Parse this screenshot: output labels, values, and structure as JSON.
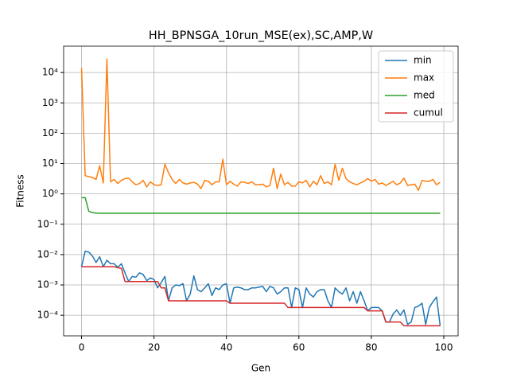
{
  "chart_data": {
    "type": "line",
    "title": "HH_BPNSGA_10run_MSE(ex),SC,AMP,W",
    "x_label": "Gen",
    "y_label": "Fitness",
    "y_scale": "log",
    "grid": true,
    "legend": "upper right",
    "x": [
      0,
      1,
      2,
      3,
      4,
      5,
      6,
      7,
      8,
      9,
      10,
      11,
      12,
      13,
      14,
      15,
      16,
      17,
      18,
      19,
      20,
      21,
      22,
      23,
      24,
      25,
      26,
      27,
      28,
      29,
      30,
      31,
      32,
      33,
      34,
      35,
      36,
      37,
      38,
      39,
      40,
      41,
      42,
      43,
      44,
      45,
      46,
      47,
      48,
      49,
      50,
      51,
      52,
      53,
      54,
      55,
      56,
      57,
      58,
      59,
      60,
      61,
      62,
      63,
      64,
      65,
      66,
      67,
      68,
      69,
      70,
      71,
      72,
      73,
      74,
      75,
      76,
      77,
      78,
      79,
      80,
      81,
      82,
      83,
      84,
      85,
      86,
      87,
      88,
      89,
      90,
      91,
      92,
      93,
      94,
      95,
      96,
      97,
      98,
      99
    ],
    "xlim": [
      -4.95,
      103.95
    ],
    "xticks": [
      0,
      20,
      40,
      60,
      80,
      100
    ],
    "ylim": [
      2.1e-05,
      74000
    ],
    "yticks": [
      {
        "value": 0.0001,
        "label": "10⁻⁴"
      },
      {
        "value": 0.001,
        "label": "10⁻³"
      },
      {
        "value": 0.01,
        "label": "10⁻²"
      },
      {
        "value": 0.1,
        "label": "10⁻¹"
      },
      {
        "value": 1,
        "label": "10⁰"
      },
      {
        "value": 10,
        "label": "10¹"
      },
      {
        "value": 100,
        "label": "10²"
      },
      {
        "value": 1000,
        "label": "10³"
      },
      {
        "value": 10000,
        "label": "10⁴"
      }
    ],
    "series": [
      {
        "name": "min",
        "color": "#1f77b4",
        "values": [
          0.004,
          0.013,
          0.012,
          0.009,
          0.0055,
          0.0085,
          0.004,
          0.0065,
          0.005,
          0.005,
          0.0038,
          0.005,
          0.0025,
          0.0013,
          0.0019,
          0.0018,
          0.0025,
          0.0022,
          0.0014,
          0.0017,
          0.0015,
          0.0008,
          0.0012,
          0.0019,
          0.0003,
          0.0008,
          0.001,
          0.00095,
          0.0011,
          0.0003,
          0.0005,
          0.002,
          0.0007,
          0.0006,
          0.0008,
          0.0011,
          0.00045,
          0.0008,
          0.0007,
          0.001,
          0.0011,
          0.00025,
          0.0008,
          0.00085,
          0.0008,
          0.0007,
          0.0007,
          0.0008,
          0.0008,
          0.00085,
          0.0009,
          0.0006,
          0.0009,
          0.0008,
          0.0005,
          0.0006,
          0.0008,
          0.0008,
          0.00018,
          0.0008,
          0.0007,
          0.00018,
          0.0008,
          0.0005,
          0.0004,
          0.0006,
          0.0007,
          0.0007,
          0.0003,
          0.00018,
          0.0008,
          0.0006,
          0.0005,
          0.0008,
          0.0003,
          0.0006,
          0.00025,
          0.0006,
          0.0003,
          0.00014,
          0.00018,
          0.00018,
          0.00018,
          0.00014,
          6e-05,
          6e-05,
          0.00011,
          0.00015,
          0.0001,
          0.00015,
          5e-05,
          6e-05,
          0.00018,
          0.0002,
          0.00025,
          5e-05,
          0.00018,
          0.00028,
          0.0004,
          4.5e-05
        ]
      },
      {
        "name": "max",
        "color": "#ff7f0e",
        "values": [
          14000,
          4,
          3.7,
          3.5,
          3,
          8.5,
          2.3,
          28000,
          2.5,
          3,
          2.2,
          2.8,
          3.2,
          3.3,
          2.5,
          2,
          2.2,
          2.8,
          1.7,
          2.5,
          2,
          1.9,
          2,
          9.5,
          5,
          3,
          2.2,
          3,
          2.3,
          2.1,
          2.3,
          2.4,
          2.1,
          1.5,
          2.8,
          2.6,
          2,
          2.5,
          2.5,
          14,
          2,
          2.6,
          2.1,
          1.8,
          2.5,
          2.4,
          2.2,
          2.5,
          2,
          2,
          2.1,
          1.7,
          1.9,
          7,
          1.5,
          4.5,
          2,
          2.4,
          1.8,
          1.8,
          2.5,
          2.3,
          2.8,
          1.7,
          2.6,
          2,
          4,
          2.2,
          2.5,
          2,
          9.5,
          2.8,
          7,
          3.2,
          2.5,
          2.2,
          2,
          2.3,
          2.6,
          3.2,
          2.6,
          3,
          2.1,
          2.3,
          1.9,
          2.2,
          2.6,
          2,
          2.3,
          3.3,
          1.9,
          2,
          2.1,
          1.3,
          2.8,
          2.6,
          2.6,
          3,
          2,
          2.4
        ]
      },
      {
        "name": "med",
        "color": "#2ca02c",
        "values": [
          0.75,
          0.75,
          0.27,
          0.24,
          0.235,
          0.23,
          0.23,
          0.23,
          0.23,
          0.23,
          0.23,
          0.23,
          0.23,
          0.23,
          0.23,
          0.23,
          0.23,
          0.23,
          0.23,
          0.23,
          0.23,
          0.23,
          0.23,
          0.23,
          0.23,
          0.23,
          0.23,
          0.23,
          0.23,
          0.23,
          0.23,
          0.23,
          0.23,
          0.23,
          0.23,
          0.23,
          0.23,
          0.23,
          0.23,
          0.23,
          0.23,
          0.23,
          0.23,
          0.23,
          0.23,
          0.23,
          0.23,
          0.23,
          0.23,
          0.23,
          0.23,
          0.23,
          0.23,
          0.23,
          0.23,
          0.23,
          0.23,
          0.23,
          0.23,
          0.23,
          0.23,
          0.23,
          0.23,
          0.23,
          0.23,
          0.23,
          0.23,
          0.23,
          0.23,
          0.23,
          0.23,
          0.23,
          0.23,
          0.23,
          0.23,
          0.23,
          0.23,
          0.23,
          0.23,
          0.23,
          0.23,
          0.23,
          0.23,
          0.23,
          0.23,
          0.23,
          0.23,
          0.23,
          0.23,
          0.23,
          0.23,
          0.23,
          0.23,
          0.23,
          0.23,
          0.23,
          0.23,
          0.23,
          0.23,
          0.23
        ]
      },
      {
        "name": "cumul",
        "color": "#d62728",
        "values": [
          0.004,
          0.004,
          0.004,
          0.004,
          0.004,
          0.004,
          0.004,
          0.004,
          0.004,
          0.004,
          0.0037,
          0.0035,
          0.0013,
          0.0013,
          0.0013,
          0.0013,
          0.0013,
          0.0013,
          0.0013,
          0.0013,
          0.0013,
          0.0013,
          0.0008,
          0.0008,
          0.0003,
          0.0003,
          0.0003,
          0.0003,
          0.0003,
          0.0003,
          0.0003,
          0.0003,
          0.0003,
          0.0003,
          0.0003,
          0.0003,
          0.0003,
          0.0003,
          0.0003,
          0.0003,
          0.0003,
          0.00025,
          0.00025,
          0.00025,
          0.00025,
          0.00025,
          0.00025,
          0.00025,
          0.00025,
          0.00025,
          0.00025,
          0.00025,
          0.00025,
          0.00025,
          0.00025,
          0.00025,
          0.00025,
          0.00018,
          0.00018,
          0.00018,
          0.00018,
          0.00018,
          0.00018,
          0.00018,
          0.00018,
          0.00018,
          0.00018,
          0.00018,
          0.00018,
          0.00018,
          0.00018,
          0.00018,
          0.00018,
          0.00018,
          0.00018,
          0.00018,
          0.00018,
          0.00018,
          0.00018,
          0.00014,
          0.00014,
          0.00014,
          0.00014,
          0.00014,
          6e-05,
          6e-05,
          6e-05,
          6e-05,
          6e-05,
          4.5e-05,
          4.5e-05,
          4.5e-05,
          4.5e-05,
          4.5e-05,
          4.5e-05,
          4.5e-05,
          4.5e-05,
          4.5e-05,
          4.5e-05,
          4.5e-05
        ]
      }
    ]
  }
}
